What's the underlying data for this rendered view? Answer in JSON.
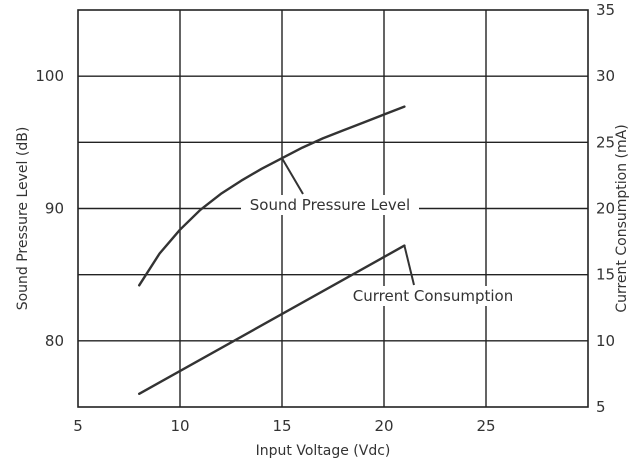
{
  "chart_data": {
    "type": "line",
    "xlabel": "Input Voltage (Vdc)",
    "ylabel_left": "Sound Pressure Level (dB)",
    "ylabel_right": "Current Consumption (mA)",
    "xlim": [
      5,
      30
    ],
    "ylim_left": [
      75,
      105
    ],
    "ylim_right": [
      5,
      35
    ],
    "x_ticks": [
      "5",
      "10",
      "15",
      "20",
      "25"
    ],
    "y_left_ticks": [
      "80",
      "90",
      "100"
    ],
    "y_right_ticks": [
      "5",
      "10",
      "15",
      "20",
      "25",
      "30",
      "35"
    ],
    "grid": true,
    "series": [
      {
        "name": "Sound Pressure Level",
        "axis": "left",
        "x": [
          8,
          9,
          10,
          11,
          12,
          13,
          14,
          15,
          16,
          17,
          18,
          19,
          20,
          21
        ],
        "y": [
          84.2,
          86.6,
          88.4,
          89.9,
          91.1,
          92.1,
          93.0,
          93.8,
          94.6,
          95.3,
          95.9,
          96.5,
          97.1,
          97.7
        ],
        "color": "#333333"
      },
      {
        "name": "Current Consumption",
        "axis": "right",
        "x": [
          8,
          21
        ],
        "y": [
          6.0,
          17.2
        ],
        "color": "#333333"
      }
    ],
    "annotations": [
      {
        "text": "Sound Pressure Level",
        "series": 0
      },
      {
        "text": "Current Consumption",
        "series": 1
      }
    ]
  }
}
